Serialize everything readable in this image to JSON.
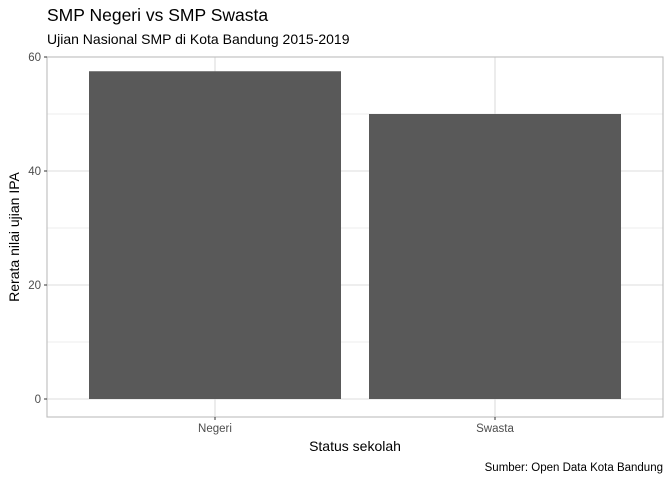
{
  "chart_data": {
    "type": "bar",
    "title": "SMP Negeri vs SMP Swasta",
    "subtitle": "Ujian Nasional SMP di Kota Bandung 2015-2019",
    "xlabel": "Status sekolah",
    "ylabel": "Rerata nilai ujian IPA",
    "caption": "Sumber: Open Data Kota Bandung",
    "categories": [
      "Negeri",
      "Swasta"
    ],
    "values": [
      57.5,
      50.0
    ],
    "ylim": [
      0,
      60
    ],
    "yticks": [
      0,
      20,
      40,
      60
    ],
    "grid": true,
    "legend": "none",
    "colors": {
      "bar": "#595959",
      "grid": "#dcdcdc",
      "panel_border": "#bdbdbd",
      "tick_text": "#4d4d4d"
    }
  }
}
